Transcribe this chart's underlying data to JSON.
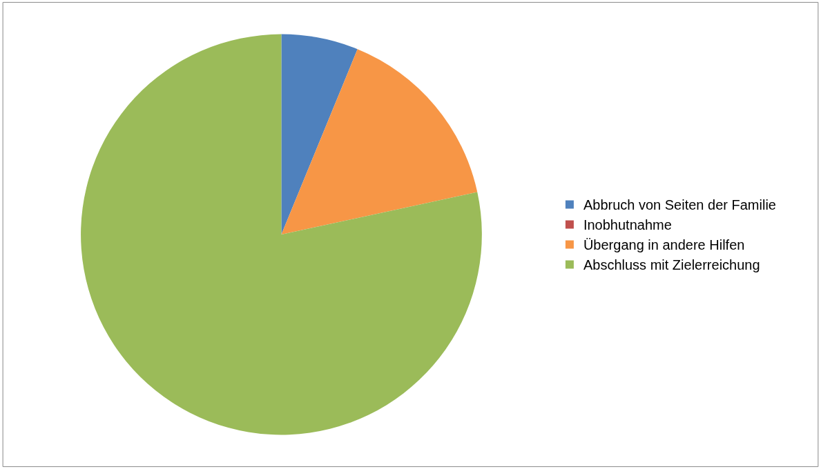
{
  "chart_data": {
    "type": "pie",
    "categories": [
      "Abbruch von Seiten der Familie",
      "Inobhutnahme",
      "Übergang in andere Hilfen",
      "Abschluss mit Zielerreichung"
    ],
    "values": [
      6.2,
      0,
      15.4,
      78.4
    ],
    "colors": [
      "#4f81bd",
      "#c0504d",
      "#f79646",
      "#9bbb59"
    ],
    "legend": "right"
  }
}
